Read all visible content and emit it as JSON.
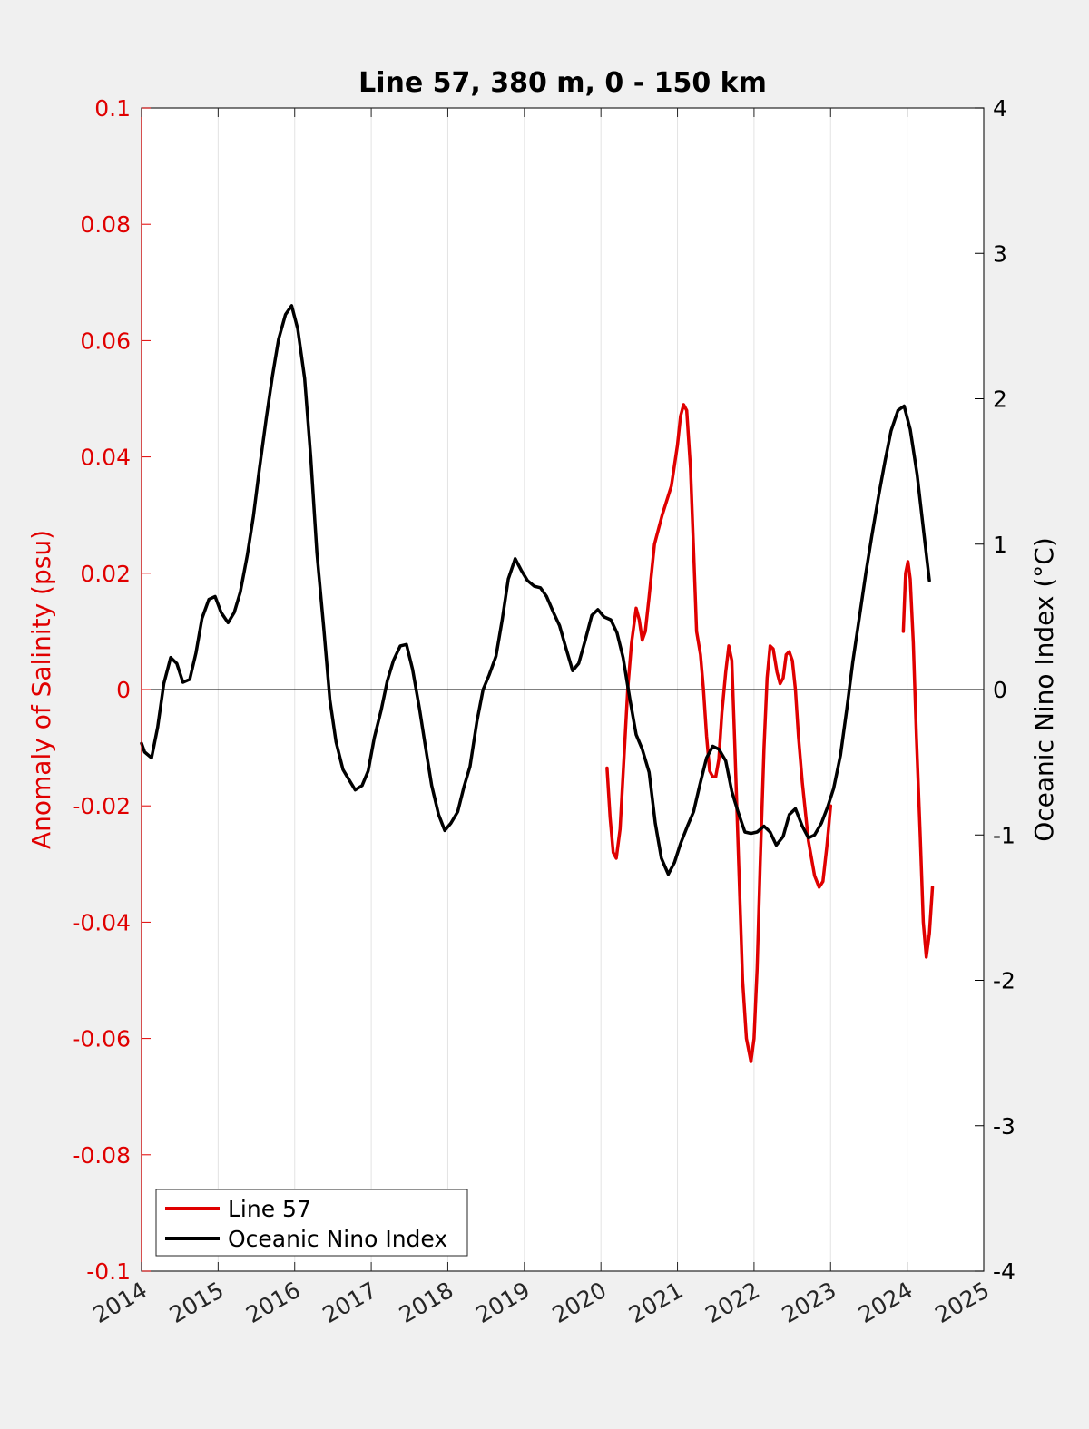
{
  "chart_data": {
    "type": "line",
    "title": "Line 57, 380 m, 0 - 150 km",
    "xlabel": "",
    "ylabel_left": "Anomaly of Salinity (psu)",
    "ylabel_right": "Oceanic Nino Index (°C)",
    "xlim": [
      2014,
      2025
    ],
    "ylim_left": [
      -0.1,
      0.1
    ],
    "ylim_right": [
      -4,
      4
    ],
    "x_ticks": [
      "2014",
      "2015",
      "2016",
      "2017",
      "2018",
      "2019",
      "2020",
      "2021",
      "2022",
      "2023",
      "2024",
      "2025"
    ],
    "y_ticks_left": [
      "0.1",
      "0.08",
      "0.06",
      "0.04",
      "0.02",
      "0",
      "-0.02",
      "-0.04",
      "-0.06",
      "-0.08",
      "-0.1"
    ],
    "y_ticks_right": [
      "4",
      "3",
      "2",
      "1",
      "0",
      "-1",
      "-2",
      "-3",
      "-4"
    ],
    "x_grid": true,
    "y_grid": false,
    "zero_line": true,
    "legend_position": "bottom-left",
    "left_axis_color": "#e00000",
    "right_axis_color": "#000000",
    "series": [
      {
        "name": "Line 57",
        "axis": "left",
        "color": "#e00000",
        "segments": [
          [
            [
              2020.08,
              -0.0135
            ],
            [
              2020.12,
              -0.022
            ],
            [
              2020.16,
              -0.028
            ],
            [
              2020.2,
              -0.029
            ],
            [
              2020.25,
              -0.024
            ],
            [
              2020.3,
              -0.012
            ],
            [
              2020.35,
              0.0
            ],
            [
              2020.4,
              0.008
            ],
            [
              2020.46,
              0.014
            ],
            [
              2020.5,
              0.012
            ],
            [
              2020.54,
              0.0085
            ],
            [
              2020.58,
              0.01
            ],
            [
              2020.63,
              0.016
            ],
            [
              2020.7,
              0.025
            ],
            [
              2020.8,
              0.03
            ],
            [
              2020.92,
              0.035
            ],
            [
              2021.0,
              0.042
            ],
            [
              2021.04,
              0.047
            ],
            [
              2021.08,
              0.049
            ],
            [
              2021.12,
              0.048
            ],
            [
              2021.17,
              0.038
            ],
            [
              2021.21,
              0.024
            ],
            [
              2021.25,
              0.01
            ],
            [
              2021.3,
              0.006
            ],
            [
              2021.34,
              0.0
            ],
            [
              2021.38,
              -0.008
            ],
            [
              2021.42,
              -0.014
            ],
            [
              2021.46,
              -0.015
            ],
            [
              2021.5,
              -0.015
            ],
            [
              2021.54,
              -0.012
            ],
            [
              2021.58,
              -0.004
            ],
            [
              2021.63,
              0.003
            ],
            [
              2021.67,
              0.0075
            ],
            [
              2021.71,
              0.005
            ],
            [
              2021.75,
              -0.01
            ],
            [
              2021.8,
              -0.03
            ],
            [
              2021.85,
              -0.05
            ],
            [
              2021.9,
              -0.06
            ],
            [
              2021.96,
              -0.064
            ],
            [
              2022.0,
              -0.06
            ],
            [
              2022.04,
              -0.048
            ],
            [
              2022.08,
              -0.03
            ],
            [
              2022.13,
              -0.01
            ],
            [
              2022.17,
              0.002
            ],
            [
              2022.21,
              0.0075
            ],
            [
              2022.25,
              0.007
            ],
            [
              2022.3,
              0.003
            ],
            [
              2022.34,
              0.001
            ],
            [
              2022.38,
              0.002
            ],
            [
              2022.42,
              0.006
            ],
            [
              2022.46,
              0.0065
            ],
            [
              2022.5,
              0.005
            ],
            [
              2022.54,
              0.0
            ],
            [
              2022.58,
              -0.008
            ],
            [
              2022.63,
              -0.016
            ],
            [
              2022.71,
              -0.026
            ],
            [
              2022.79,
              -0.032
            ],
            [
              2022.85,
              -0.034
            ],
            [
              2022.9,
              -0.033
            ],
            [
              2022.95,
              -0.027
            ],
            [
              2023.0,
              -0.02
            ]
          ],
          [
            [
              2023.95,
              0.01
            ],
            [
              2023.98,
              0.02
            ],
            [
              2024.01,
              0.022
            ],
            [
              2024.04,
              0.019
            ],
            [
              2024.08,
              0.008
            ],
            [
              2024.12,
              -0.008
            ],
            [
              2024.17,
              -0.025
            ],
            [
              2024.21,
              -0.04
            ],
            [
              2024.25,
              -0.046
            ],
            [
              2024.29,
              -0.042
            ],
            [
              2024.33,
              -0.034
            ]
          ]
        ]
      },
      {
        "name": "Oceanic Nino Index",
        "axis": "right",
        "color": "#000000",
        "segments": [
          [
            [
              2014.0,
              -0.37
            ],
            [
              2014.04,
              -0.43
            ],
            [
              2014.13,
              -0.47
            ],
            [
              2014.21,
              -0.26
            ],
            [
              2014.29,
              0.04
            ],
            [
              2014.38,
              0.22
            ],
            [
              2014.46,
              0.18
            ],
            [
              2014.54,
              0.05
            ],
            [
              2014.63,
              0.07
            ],
            [
              2014.71,
              0.25
            ],
            [
              2014.79,
              0.49
            ],
            [
              2014.88,
              0.62
            ],
            [
              2014.96,
              0.64
            ],
            [
              2015.04,
              0.53
            ],
            [
              2015.13,
              0.46
            ],
            [
              2015.21,
              0.53
            ],
            [
              2015.29,
              0.67
            ],
            [
              2015.38,
              0.92
            ],
            [
              2015.46,
              1.19
            ],
            [
              2015.54,
              1.52
            ],
            [
              2015.63,
              1.87
            ],
            [
              2015.71,
              2.16
            ],
            [
              2015.79,
              2.41
            ],
            [
              2015.88,
              2.58
            ],
            [
              2015.96,
              2.64
            ],
            [
              2016.04,
              2.48
            ],
            [
              2016.13,
              2.14
            ],
            [
              2016.21,
              1.6
            ],
            [
              2016.29,
              0.94
            ],
            [
              2016.38,
              0.42
            ],
            [
              2016.46,
              -0.07
            ],
            [
              2016.54,
              -0.36
            ],
            [
              2016.63,
              -0.55
            ],
            [
              2016.71,
              -0.62
            ],
            [
              2016.79,
              -0.69
            ],
            [
              2016.88,
              -0.66
            ],
            [
              2016.96,
              -0.56
            ],
            [
              2017.04,
              -0.33
            ],
            [
              2017.13,
              -0.14
            ],
            [
              2017.21,
              0.06
            ],
            [
              2017.29,
              0.2
            ],
            [
              2017.38,
              0.3
            ],
            [
              2017.46,
              0.31
            ],
            [
              2017.54,
              0.14
            ],
            [
              2017.63,
              -0.13
            ],
            [
              2017.71,
              -0.4
            ],
            [
              2017.79,
              -0.66
            ],
            [
              2017.88,
              -0.86
            ],
            [
              2017.96,
              -0.97
            ],
            [
              2018.04,
              -0.92
            ],
            [
              2018.13,
              -0.84
            ],
            [
              2018.21,
              -0.67
            ],
            [
              2018.29,
              -0.53
            ],
            [
              2018.38,
              -0.22
            ],
            [
              2018.46,
              0.0
            ],
            [
              2018.54,
              0.1
            ],
            [
              2018.63,
              0.23
            ],
            [
              2018.71,
              0.48
            ],
            [
              2018.79,
              0.76
            ],
            [
              2018.88,
              0.9
            ],
            [
              2018.96,
              0.82
            ],
            [
              2019.04,
              0.75
            ],
            [
              2019.13,
              0.71
            ],
            [
              2019.21,
              0.7
            ],
            [
              2019.29,
              0.64
            ],
            [
              2019.38,
              0.53
            ],
            [
              2019.46,
              0.44
            ],
            [
              2019.54,
              0.29
            ],
            [
              2019.63,
              0.13
            ],
            [
              2019.71,
              0.18
            ],
            [
              2019.79,
              0.33
            ],
            [
              2019.88,
              0.51
            ],
            [
              2019.96,
              0.55
            ],
            [
              2020.04,
              0.5
            ],
            [
              2020.13,
              0.48
            ],
            [
              2020.21,
              0.39
            ],
            [
              2020.29,
              0.22
            ],
            [
              2020.38,
              -0.07
            ],
            [
              2020.46,
              -0.31
            ],
            [
              2020.54,
              -0.41
            ],
            [
              2020.63,
              -0.57
            ],
            [
              2020.71,
              -0.92
            ],
            [
              2020.79,
              -1.16
            ],
            [
              2020.88,
              -1.27
            ],
            [
              2020.96,
              -1.19
            ],
            [
              2021.04,
              -1.06
            ],
            [
              2021.13,
              -0.94
            ],
            [
              2021.21,
              -0.84
            ],
            [
              2021.29,
              -0.66
            ],
            [
              2021.38,
              -0.47
            ],
            [
              2021.46,
              -0.39
            ],
            [
              2021.54,
              -0.41
            ],
            [
              2021.63,
              -0.49
            ],
            [
              2021.71,
              -0.7
            ],
            [
              2021.79,
              -0.84
            ],
            [
              2021.88,
              -0.98
            ],
            [
              2021.96,
              -0.99
            ],
            [
              2022.04,
              -0.98
            ],
            [
              2022.13,
              -0.94
            ],
            [
              2022.21,
              -0.98
            ],
            [
              2022.29,
              -1.07
            ],
            [
              2022.38,
              -1.01
            ],
            [
              2022.46,
              -0.86
            ],
            [
              2022.54,
              -0.82
            ],
            [
              2022.63,
              -0.94
            ],
            [
              2022.71,
              -1.02
            ],
            [
              2022.79,
              -1.0
            ],
            [
              2022.88,
              -0.92
            ],
            [
              2022.96,
              -0.81
            ],
            [
              2023.04,
              -0.68
            ],
            [
              2023.13,
              -0.45
            ],
            [
              2023.21,
              -0.14
            ],
            [
              2023.29,
              0.19
            ],
            [
              2023.38,
              0.51
            ],
            [
              2023.46,
              0.8
            ],
            [
              2023.54,
              1.06
            ],
            [
              2023.63,
              1.34
            ],
            [
              2023.71,
              1.57
            ],
            [
              2023.79,
              1.78
            ],
            [
              2023.88,
              1.92
            ],
            [
              2023.96,
              1.95
            ],
            [
              2024.04,
              1.79
            ],
            [
              2024.13,
              1.48
            ],
            [
              2024.21,
              1.11
            ],
            [
              2024.29,
              0.75
            ]
          ]
        ]
      }
    ]
  }
}
